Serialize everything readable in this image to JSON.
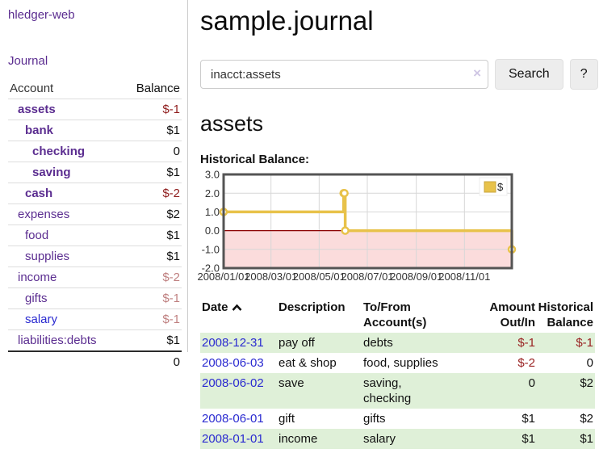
{
  "app": {
    "brand": "hledger-web",
    "nav": {
      "journal": "Journal"
    }
  },
  "colors": {
    "link_purple": "#5b2d90",
    "link_blue": "#2a2ad0",
    "negative_strong": "#8f1d1d",
    "negative_muted": "#bf8080",
    "negative_table": "#992222",
    "row_stripe_green": "#dff0d8",
    "chart_line_gold": "#e8c24a",
    "chart_negative_bg": "#fbdcdc"
  },
  "sidebar": {
    "headers": {
      "account": "Account",
      "balance": "Balance"
    },
    "accounts": [
      {
        "name": "assets",
        "balance": "$-1"
      },
      {
        "name": "bank",
        "balance": "$1"
      },
      {
        "name": "checking",
        "balance": "0"
      },
      {
        "name": "saving",
        "balance": "$1"
      },
      {
        "name": "cash",
        "balance": "$-2"
      },
      {
        "name": "expenses",
        "balance": "$2"
      },
      {
        "name": "food",
        "balance": "$1"
      },
      {
        "name": "supplies",
        "balance": "$1"
      },
      {
        "name": "income",
        "balance": "$-2"
      },
      {
        "name": "gifts",
        "balance": "$-1"
      },
      {
        "name": "salary",
        "balance": "$-1"
      },
      {
        "name": "liabilities:debts",
        "balance": "$1"
      }
    ],
    "total": "0"
  },
  "main": {
    "title": "sample.journal",
    "search": {
      "value": "inacct:assets",
      "clear_icon": "×",
      "button_label": "Search",
      "help_label": "?"
    },
    "account_heading": "assets",
    "chart_label": "Historical Balance:"
  },
  "chart_data": {
    "type": "line",
    "style": "step-after",
    "title": "Historical Balance:",
    "series": [
      {
        "name": "$",
        "x": [
          "2008-01-01",
          "2008-06-01",
          "2008-06-02",
          "2008-06-03",
          "2008-12-31"
        ],
        "values": [
          1,
          2,
          2,
          0,
          -1
        ]
      }
    ],
    "xlabel": "",
    "ylabel": "",
    "ylim": [
      -2,
      3
    ],
    "y_ticks": [
      3,
      2,
      1,
      0,
      -1,
      -2
    ],
    "x_range": [
      "2008-01-01",
      "2008-12-31"
    ],
    "x_ticks": [
      {
        "date": "2008-01-01",
        "label": "2008/01/01"
      },
      {
        "date": "2008-03-01",
        "label": "2008/03/01"
      },
      {
        "date": "2008-05-01",
        "label": "2008/05/01"
      },
      {
        "date": "2008-07-01",
        "label": "2008/07/01"
      },
      {
        "date": "2008-09-01",
        "label": "2008/09/01"
      },
      {
        "date": "2008-11-01",
        "label": "2008/11/01"
      }
    ],
    "grid": true,
    "legend": {
      "label": "$",
      "position": "top-right"
    },
    "colors": {
      "line": "#e8c24a",
      "marker_fill": "#ffffff",
      "negative_region": "#fbdcdc",
      "zero_line": "#8b0000",
      "grid": "#d7d7d7",
      "border": "#545454",
      "tick_text": "#333333"
    }
  },
  "register": {
    "headers": {
      "date": "Date",
      "description": "Description",
      "accounts_line1": "To/From",
      "accounts_line2": "Account(s)",
      "amount_line1": "Amount",
      "amount_line2": "Out/In",
      "balance_line1": "Historical",
      "balance_line2": "Balance"
    },
    "rows": [
      {
        "date": "2008-12-31",
        "description": "pay off",
        "accounts": "debts",
        "amount": "$-1",
        "balance": "$-1"
      },
      {
        "date": "2008-06-03",
        "description": "eat & shop",
        "accounts": "food, supplies",
        "amount": "$-2",
        "balance": "0"
      },
      {
        "date": "2008-06-02",
        "description": "save",
        "accounts": "saving,\nchecking",
        "amount": "0",
        "balance": "$2"
      },
      {
        "date": "2008-06-01",
        "description": "gift",
        "accounts": "gifts",
        "amount": "$1",
        "balance": "$2"
      },
      {
        "date": "2008-01-01",
        "description": "income",
        "accounts": "salary",
        "amount": "$1",
        "balance": "$1"
      }
    ]
  }
}
